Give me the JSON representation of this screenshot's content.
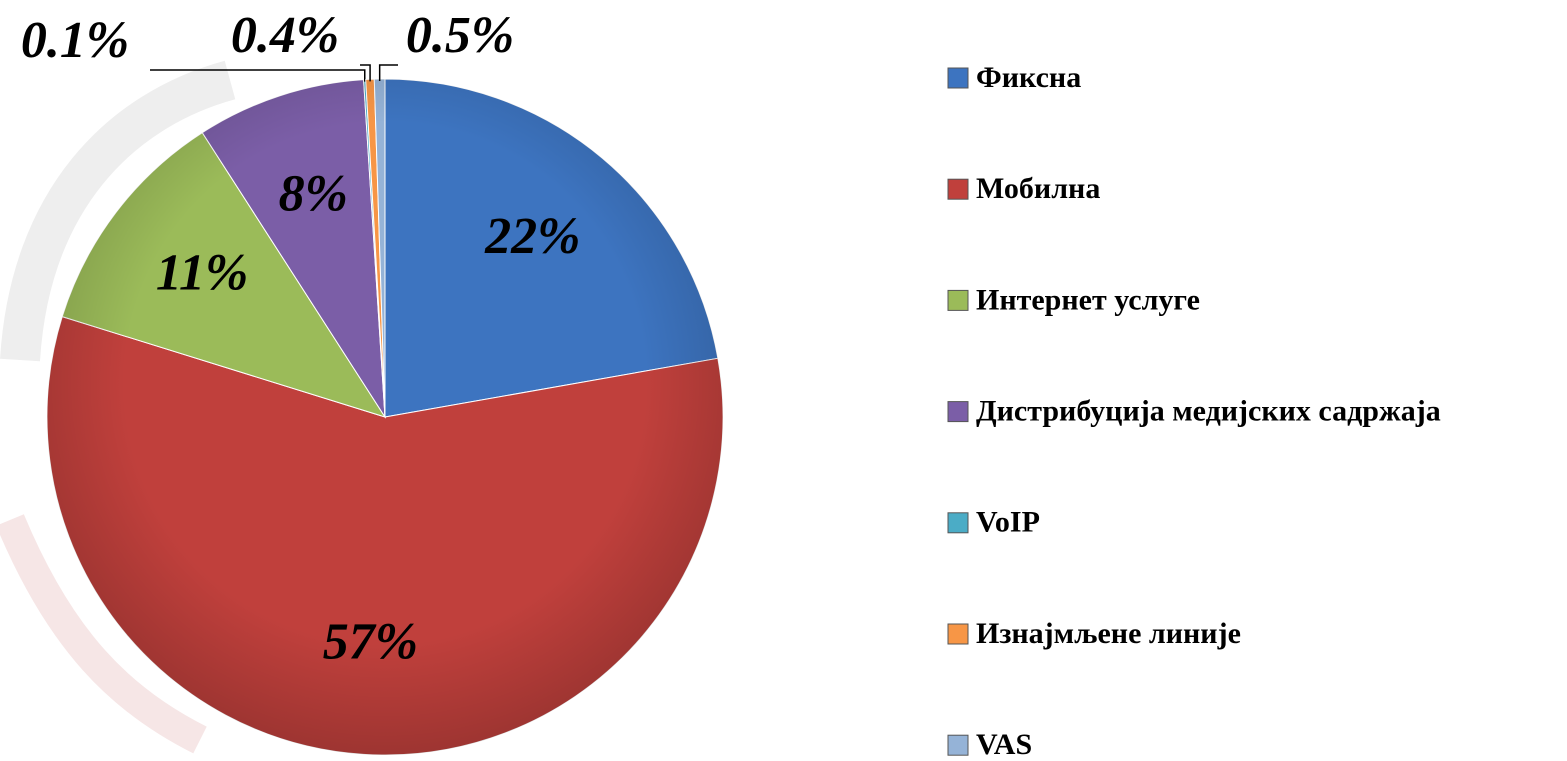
{
  "chart_data": {
    "type": "pie",
    "categories": [
      "Фиксна",
      "Мобилна",
      "Интернет услуге",
      "Дистрибуција медијских садржаја",
      "VoIP",
      "Изнајмљене линије",
      "VAS"
    ],
    "values": [
      22,
      57,
      11,
      8,
      0.1,
      0.4,
      0.5
    ],
    "value_labels": [
      "22%",
      "57%",
      "11%",
      "8%",
      "0.1%",
      "0.4%",
      "0.5%"
    ],
    "colors": [
      "#3d74c0",
      "#c0403c",
      "#9bbb59",
      "#7b5ea7",
      "#4bacc6",
      "#f79646",
      "#95b3d7"
    ],
    "legend": "right"
  }
}
